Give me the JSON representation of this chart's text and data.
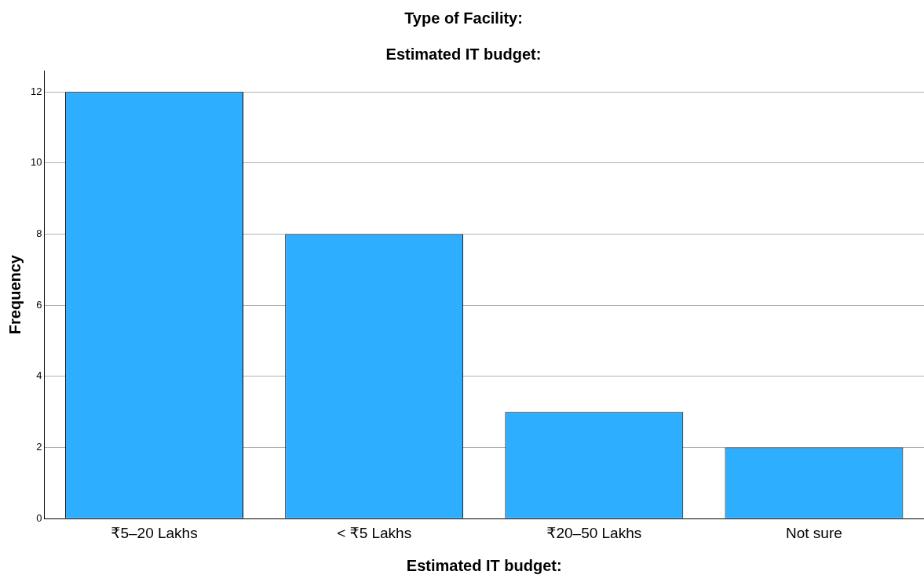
{
  "chart_data": {
    "type": "bar",
    "title": "Type of Facility:",
    "subtitle": "Estimated IT budget:",
    "xlabel": "Estimated IT budget:",
    "ylabel": "Frequency",
    "categories": [
      "₹5–20 Lakhs",
      "< ₹5 Lakhs",
      "₹20–50 Lakhs",
      "Not sure"
    ],
    "values": [
      12,
      8,
      3,
      2
    ],
    "color": "#2eaefe",
    "ylim": [
      0,
      12.6
    ],
    "yticks": [
      0,
      2,
      4,
      6,
      8,
      10,
      12
    ],
    "grid": "y",
    "legend": false
  }
}
